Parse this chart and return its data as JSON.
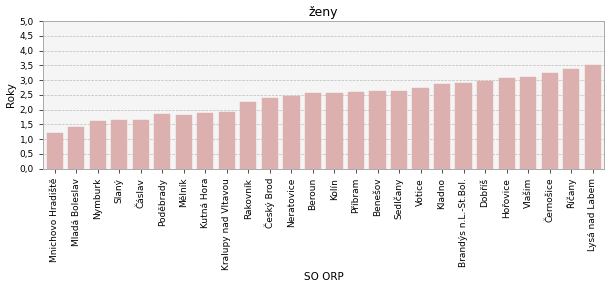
{
  "categories": [
    "Mnichovo Hradiště",
    "Mladá Boleslav",
    "Nymburk",
    "Slaný",
    "Čáslav",
    "Poděbrady",
    "Mělník",
    "Kutná Hora",
    "Kralupy nad Vltavou",
    "Rakovník",
    "Český Brod",
    "Neratovice",
    "Beroun",
    "Kolín",
    "Příbram",
    "Benešov",
    "Sedlčany",
    "Votice",
    "Kladno",
    "Brandýs n.L.-St.Bol.",
    "Dobříš",
    "Hořovice",
    "Vlašim",
    "Černošice",
    "Říčany",
    "Lysá nad Labem"
  ],
  "values": [
    1.2,
    1.43,
    1.62,
    1.65,
    1.65,
    1.85,
    1.83,
    1.9,
    1.93,
    2.25,
    2.38,
    2.46,
    2.55,
    2.58,
    2.6,
    2.62,
    2.63,
    2.75,
    2.88,
    2.92,
    2.97,
    3.07,
    3.12,
    3.25,
    3.38,
    3.52
  ],
  "bar_color": "#ddb0b0",
  "bar_edge_color": "#ddb0b0",
  "title": "ženy",
  "ylabel": "Roky",
  "xlabel": "SO ORP",
  "ylim": [
    0.0,
    5.0
  ],
  "yticks": [
    0.0,
    0.5,
    1.0,
    1.5,
    2.0,
    2.5,
    3.0,
    3.5,
    4.0,
    4.5,
    5.0
  ],
  "ytick_labels": [
    "0,0",
    "0,5",
    "1,0",
    "1,5",
    "2,0",
    "2,5",
    "3,0",
    "3,5",
    "4,0",
    "4,5",
    "5,0"
  ],
  "title_fontsize": 9,
  "axis_label_fontsize": 7.5,
  "tick_fontsize": 6.5,
  "background_color": "#ffffff",
  "plot_bg_color": "#f5f5f5",
  "grid_color": "#bbbbbb",
  "spine_color": "#aaaaaa"
}
